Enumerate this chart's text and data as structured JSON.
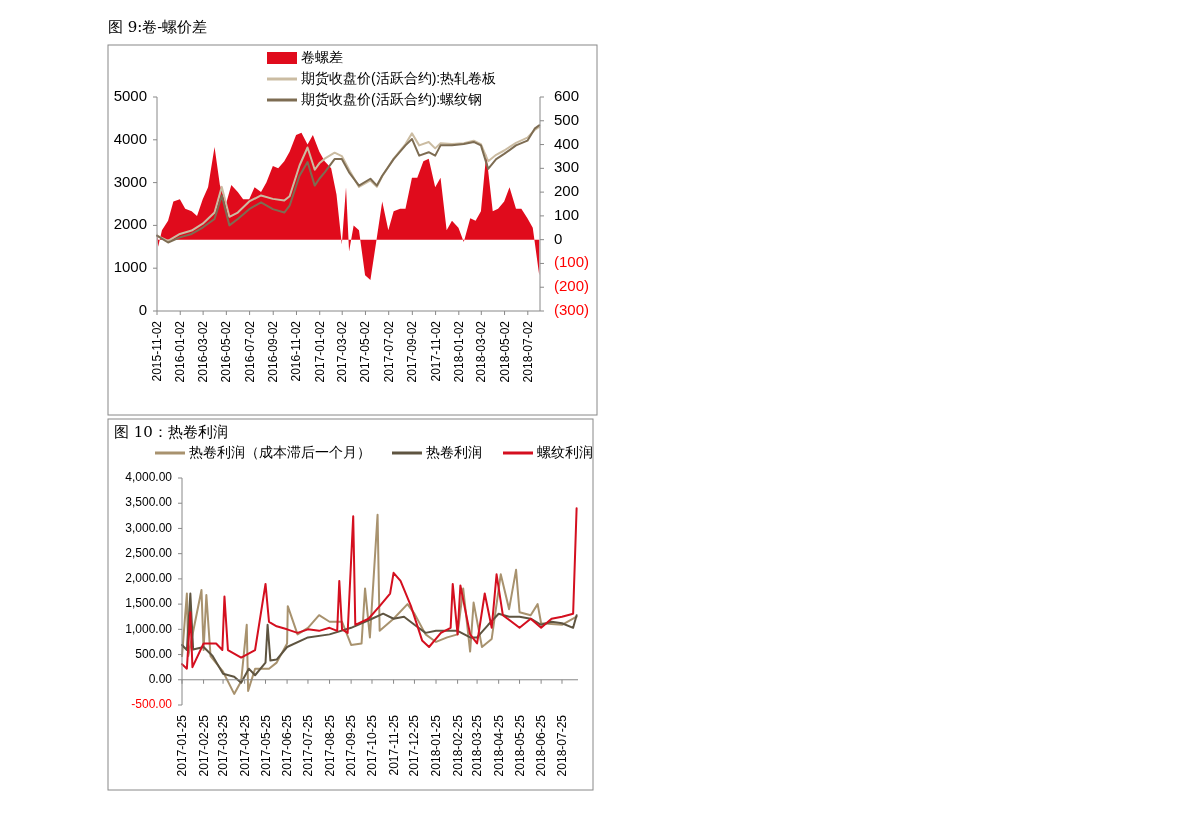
{
  "chart_data": [
    {
      "type": "line",
      "title": "图 9:卷-螺价差",
      "legend": "top",
      "xlim": [
        "2015-11-02",
        "2018-08-03"
      ],
      "xticks": [
        "2015-11-02",
        "2016-01-02",
        "2016-03-02",
        "2016-05-02",
        "2016-07-02",
        "2016-09-02",
        "2016-11-02",
        "2017-01-02",
        "2017-03-02",
        "2017-05-02",
        "2017-07-02",
        "2017-09-02",
        "2017-11-02",
        "2018-01-02",
        "2018-03-02",
        "2018-05-02",
        "2018-07-02"
      ],
      "ylim": [
        0,
        5000
      ],
      "yticks": [
        0,
        1000,
        2000,
        3000,
        4000,
        5000
      ],
      "y2lim": [
        -300,
        600
      ],
      "y2ticks": [
        {
          "value": -300,
          "label": "(300)"
        },
        {
          "value": -200,
          "label": "(200)"
        },
        {
          "value": -100,
          "label": "(100)"
        },
        0,
        100,
        200,
        300,
        400,
        500,
        600
      ],
      "series": [
        {
          "name": "卷螺差",
          "type": "area",
          "axis": "y2",
          "color": "#e00b1c",
          "x": [
            "2015-11-02",
            "2015-11-05",
            "2015-11-15",
            "2015-12-01",
            "2015-12-15",
            "2016-01-01",
            "2016-01-15",
            "2016-02-01",
            "2016-02-15",
            "2016-03-01",
            "2016-03-15",
            "2016-04-01",
            "2016-04-15",
            "2016-05-01",
            "2016-05-15",
            "2016-06-01",
            "2016-06-15",
            "2016-07-01",
            "2016-07-15",
            "2016-08-01",
            "2016-08-15",
            "2016-09-01",
            "2016-09-15",
            "2016-10-01",
            "2016-10-15",
            "2016-11-01",
            "2016-11-15",
            "2016-12-01",
            "2016-12-15",
            "2017-01-01",
            "2017-01-15",
            "2017-02-01",
            "2017-02-15",
            "2017-03-01",
            "2017-03-12",
            "2017-03-20",
            "2017-04-01",
            "2017-04-15",
            "2017-05-01",
            "2017-05-15",
            "2017-06-01",
            "2017-06-15",
            "2017-07-01",
            "2017-07-15",
            "2017-08-01",
            "2017-08-15",
            "2017-09-01",
            "2017-09-15",
            "2017-10-01",
            "2017-10-15",
            "2017-11-01",
            "2017-11-15",
            "2017-12-01",
            "2017-12-15",
            "2018-01-01",
            "2018-01-15",
            "2018-02-01",
            "2018-02-15",
            "2018-03-01",
            "2018-03-15",
            "2018-04-01",
            "2018-04-15",
            "2018-05-01",
            "2018-05-15",
            "2018-06-01",
            "2018-06-15",
            "2018-07-01",
            "2018-07-15",
            "2018-08-01"
          ],
          "values": [
            30,
            -30,
            40,
            80,
            160,
            170,
            130,
            120,
            100,
            170,
            220,
            390,
            230,
            150,
            230,
            200,
            170,
            170,
            220,
            200,
            240,
            310,
            300,
            330,
            370,
            440,
            450,
            400,
            440,
            370,
            330,
            300,
            190,
            -20,
            220,
            -50,
            60,
            40,
            -150,
            -170,
            10,
            160,
            40,
            120,
            130,
            130,
            260,
            260,
            330,
            340,
            220,
            260,
            40,
            80,
            50,
            -10,
            90,
            80,
            120,
            360,
            120,
            130,
            160,
            220,
            130,
            130,
            90,
            50,
            -150
          ]
        },
        {
          "name": "期货收盘价(活跃合约):热轧卷板",
          "color": "#cbbca2",
          "x": [
            "2015-11-02",
            "2015-12-01",
            "2016-01-01",
            "2016-02-01",
            "2016-03-01",
            "2016-04-01",
            "2016-04-20",
            "2016-05-10",
            "2016-06-01",
            "2016-07-01",
            "2016-08-01",
            "2016-09-01",
            "2016-10-01",
            "2016-10-15",
            "2016-11-10",
            "2016-12-01",
            "2016-12-20",
            "2017-01-01",
            "2017-01-15",
            "2017-02-10",
            "2017-03-01",
            "2017-03-20",
            "2017-04-15",
            "2017-05-15",
            "2017-06-01",
            "2017-06-15",
            "2017-07-15",
            "2017-08-15",
            "2017-09-01",
            "2017-09-20",
            "2017-10-15",
            "2017-11-01",
            "2017-11-15",
            "2017-12-15",
            "2018-01-15",
            "2018-02-10",
            "2018-03-01",
            "2018-03-20",
            "2018-04-10",
            "2018-05-01",
            "2018-06-01",
            "2018-07-01",
            "2018-07-20",
            "2018-08-01"
          ],
          "values": [
            1760,
            1640,
            1800,
            1880,
            2040,
            2300,
            2900,
            2200,
            2300,
            2560,
            2700,
            2620,
            2580,
            2680,
            3400,
            3820,
            3300,
            3450,
            3560,
            3700,
            3620,
            3300,
            2900,
            3050,
            2900,
            3150,
            3560,
            3900,
            4150,
            3870,
            3950,
            3800,
            3920,
            3900,
            3920,
            3980,
            3900,
            3500,
            3650,
            3750,
            3930,
            4050,
            4230,
            4300
          ]
        },
        {
          "name": "期货收盘价(活跃合约):螺纹钢",
          "color": "#7d6c52",
          "x": [
            "2015-11-02",
            "2015-12-01",
            "2016-01-01",
            "2016-02-01",
            "2016-03-01",
            "2016-04-01",
            "2016-04-20",
            "2016-05-10",
            "2016-06-01",
            "2016-07-01",
            "2016-08-01",
            "2016-09-01",
            "2016-10-01",
            "2016-10-15",
            "2016-11-10",
            "2016-12-01",
            "2016-12-20",
            "2017-01-01",
            "2017-01-15",
            "2017-02-10",
            "2017-03-01",
            "2017-03-20",
            "2017-04-15",
            "2017-05-15",
            "2017-06-01",
            "2017-06-15",
            "2017-07-15",
            "2017-08-15",
            "2017-09-01",
            "2017-09-20",
            "2017-10-15",
            "2017-11-01",
            "2017-11-15",
            "2017-12-15",
            "2018-01-15",
            "2018-02-10",
            "2018-03-01",
            "2018-03-20",
            "2018-04-10",
            "2018-05-01",
            "2018-06-01",
            "2018-07-01",
            "2018-07-20",
            "2018-08-01"
          ],
          "values": [
            1760,
            1600,
            1720,
            1800,
            1950,
            2150,
            2700,
            2000,
            2150,
            2380,
            2540,
            2380,
            2300,
            2460,
            3160,
            3480,
            2930,
            3090,
            3240,
            3550,
            3550,
            3240,
            2930,
            3090,
            2930,
            3160,
            3550,
            3870,
            4020,
            3630,
            3710,
            3630,
            3870,
            3870,
            3900,
            3950,
            3870,
            3320,
            3550,
            3670,
            3870,
            3980,
            4260,
            4340
          ]
        }
      ]
    },
    {
      "type": "line",
      "title": "图 10：热卷利润",
      "legend": "top",
      "xlim": [
        "2017-01-25",
        "2018-08-17"
      ],
      "xticks": [
        "2017-01-25",
        "2017-02-25",
        "2017-03-25",
        "2017-04-25",
        "2017-05-25",
        "2017-06-25",
        "2017-07-25",
        "2017-08-25",
        "2017-09-25",
        "2017-10-25",
        "2017-11-25",
        "2017-12-25",
        "2018-01-25",
        "2018-02-25",
        "2018-03-25",
        "2018-04-25",
        "2018-05-25",
        "2018-06-25",
        "2018-07-25"
      ],
      "ylim": [
        -500,
        4000
      ],
      "yticks": [
        {
          "value": -500,
          "label": "-500.00"
        },
        {
          "value": 0,
          "label": "0.00"
        },
        {
          "value": 500,
          "label": "500.00"
        },
        {
          "value": 1000,
          "label": "1,000.00"
        },
        {
          "value": 1500,
          "label": "1,500.00"
        },
        {
          "value": 2000,
          "label": "2,000.00"
        },
        {
          "value": 2500,
          "label": "2,500.00"
        },
        {
          "value": 3000,
          "label": "3,000.00"
        },
        {
          "value": 3500,
          "label": "3,500.00"
        },
        {
          "value": 4000,
          "label": "4,000.00"
        }
      ],
      "series": [
        {
          "name": "热卷利润（成本滞后一个月）",
          "color": "#a8926e",
          "x": [
            "2017-01-25",
            "2017-02-01",
            "2017-02-03",
            "2017-02-22",
            "2017-02-25",
            "2017-03-01",
            "2017-03-07",
            "2017-03-25",
            "2017-04-10",
            "2017-04-20",
            "2017-04-28",
            "2017-04-30",
            "2017-05-10",
            "2017-05-30",
            "2017-06-10",
            "2017-06-25",
            "2017-06-26",
            "2017-07-10",
            "2017-07-25",
            "2017-08-10",
            "2017-08-25",
            "2017-09-12",
            "2017-09-25",
            "2017-10-10",
            "2017-10-15",
            "2017-10-22",
            "2017-11-02",
            "2017-11-05",
            "2017-11-25",
            "2017-12-15",
            "2017-12-25",
            "2018-01-10",
            "2018-01-25",
            "2018-02-10",
            "2018-02-25",
            "2018-03-05",
            "2018-03-15",
            "2018-03-20",
            "2018-04-01",
            "2018-04-15",
            "2018-04-28",
            "2018-05-10",
            "2018-05-20",
            "2018-05-25",
            "2018-06-10",
            "2018-06-20",
            "2018-06-25",
            "2018-07-25",
            "2018-08-15"
          ],
          "values": [
            470,
            1710,
            470,
            1780,
            590,
            1680,
            470,
            160,
            -280,
            -30,
            1090,
            -220,
            220,
            220,
            340,
            720,
            1460,
            900,
            1030,
            1280,
            1150,
            1150,
            690,
            720,
            1810,
            840,
            3270,
            970,
            1210,
            1500,
            1310,
            900,
            750,
            840,
            900,
            1810,
            560,
            1530,
            650,
            810,
            2090,
            1400,
            2180,
            1340,
            1280,
            1500,
            1120,
            1090,
            1250
          ]
        },
        {
          "name": "热卷利润",
          "color": "#5e5440",
          "x": [
            "2017-01-25",
            "2017-02-01",
            "2017-02-06",
            "2017-02-10",
            "2017-02-25",
            "2017-03-10",
            "2017-03-25",
            "2017-04-10",
            "2017-04-20",
            "2017-05-01",
            "2017-05-10",
            "2017-05-25",
            "2017-05-28",
            "2017-06-01",
            "2017-06-10",
            "2017-06-25",
            "2017-07-25",
            "2017-08-25",
            "2017-09-25",
            "2017-10-25",
            "2017-11-10",
            "2017-11-25",
            "2017-12-10",
            "2017-12-25",
            "2018-01-10",
            "2018-01-25",
            "2018-02-10",
            "2018-02-25",
            "2018-03-15",
            "2018-03-25",
            "2018-04-10",
            "2018-04-25",
            "2018-05-10",
            "2018-05-25",
            "2018-06-10",
            "2018-06-25",
            "2018-07-10",
            "2018-07-25",
            "2018-08-10",
            "2018-08-15"
          ],
          "values": [
            690,
            590,
            1710,
            600,
            650,
            470,
            120,
            60,
            -60,
            220,
            90,
            340,
            1090,
            380,
            400,
            650,
            840,
            900,
            1030,
            1210,
            1310,
            1210,
            1250,
            1090,
            930,
            970,
            970,
            970,
            840,
            840,
            1090,
            1310,
            1250,
            1250,
            1210,
            1090,
            1150,
            1120,
            1030,
            1280
          ]
        },
        {
          "name": "螺纹利润",
          "color": "#d40f1f",
          "x": [
            "2017-01-25",
            "2017-02-01",
            "2017-02-06",
            "2017-02-09",
            "2017-02-25",
            "2017-03-15",
            "2017-03-24",
            "2017-03-27",
            "2017-04-01",
            "2017-04-20",
            "2017-05-10",
            "2017-05-25",
            "2017-05-30",
            "2017-06-10",
            "2017-06-25",
            "2017-07-10",
            "2017-07-25",
            "2017-08-10",
            "2017-08-25",
            "2017-09-05",
            "2017-09-08",
            "2017-09-12",
            "2017-09-20",
            "2017-09-28",
            "2017-10-01",
            "2017-10-20",
            "2017-11-05",
            "2017-11-20",
            "2017-11-25",
            "2017-12-05",
            "2017-12-20",
            "2018-01-05",
            "2018-01-15",
            "2018-02-01",
            "2018-02-15",
            "2018-02-18",
            "2018-02-25",
            "2018-03-01",
            "2018-03-15",
            "2018-03-25",
            "2018-04-05",
            "2018-04-15",
            "2018-04-22",
            "2018-05-01",
            "2018-05-25",
            "2018-06-10",
            "2018-06-25",
            "2018-07-10",
            "2018-07-25",
            "2018-08-10",
            "2018-08-15"
          ],
          "values": [
            310,
            220,
            1340,
            250,
            720,
            720,
            590,
            1650,
            590,
            440,
            590,
            1900,
            1150,
            1060,
            1000,
            930,
            1000,
            970,
            1030,
            970,
            1960,
            1000,
            930,
            3240,
            1090,
            1210,
            1460,
            1710,
            2120,
            1960,
            1460,
            780,
            650,
            930,
            1030,
            1900,
            900,
            1870,
            900,
            720,
            1710,
            1030,
            2090,
            1280,
            1030,
            1210,
            1030,
            1210,
            1250,
            1310,
            3400
          ]
        }
      ]
    }
  ]
}
